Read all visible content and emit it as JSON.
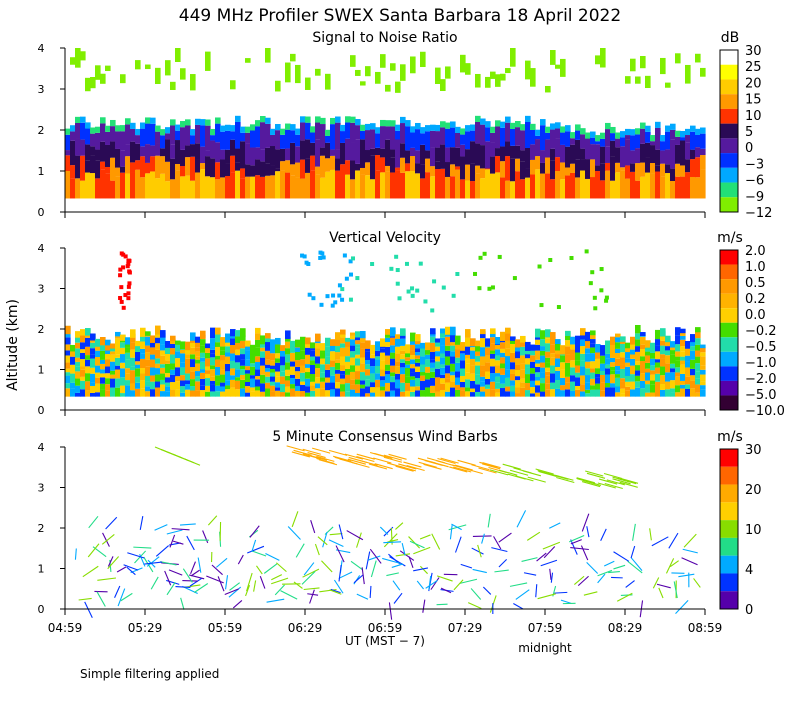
{
  "chart_data": {
    "type": "heatmap",
    "title": "449 MHz Profiler SWEX Santa Barbara 18 April 2022",
    "ylabel": "Altitude (km)",
    "xlabel": "UT  (MST − 7)",
    "midnight_label": "midnight",
    "footnote": "Simple filtering applied",
    "x_tick_labels": [
      "04:59",
      "05:29",
      "05:59",
      "06:29",
      "06:59",
      "07:29",
      "07:59",
      "08:29",
      "08:59"
    ],
    "y_tick_labels": [
      "0",
      "1",
      "2",
      "3",
      "4"
    ],
    "ylim": [
      0,
      4
    ],
    "panels": [
      {
        "id": "snr",
        "subtitle": "Signal to Noise Ratio",
        "units": "dB",
        "colorbar_labels": [
          "30",
          "25",
          "20",
          "15",
          "10",
          "5",
          "0",
          "−3",
          "−6",
          "−9",
          "−12"
        ],
        "colors": [
          "#ffffff",
          "#ffff00",
          "#ffcc00",
          "#ff9900",
          "#ff3300",
          "#2a0a55",
          "#551a9e",
          "#0030ff",
          "#00a8ff",
          "#22e077",
          "#80ee00"
        ]
      },
      {
        "id": "w",
        "subtitle": "Vertical Velocity",
        "units": "m/s",
        "colorbar_labels": [
          "2.0",
          "1.0",
          "0.5",
          "0.2",
          "0.0",
          "−0.2",
          "−0.5",
          "−1.0",
          "−2.0",
          "−5.0",
          "−10.0"
        ],
        "colors": [
          "#ff0000",
          "#ff6600",
          "#ff9900",
          "#ffb300",
          "#ffd000",
          "#44dd00",
          "#22ddaa",
          "#00aaff",
          "#0033ff",
          "#5500aa",
          "#330033"
        ]
      },
      {
        "id": "wind",
        "subtitle": "5 Minute Consensus Wind Barbs",
        "units": "m/s",
        "colorbar_labels": [
          "30",
          "20",
          "10",
          "4",
          "0"
        ],
        "colors": [
          "#ff0000",
          "#ff6600",
          "#ffaa00",
          "#ffd000",
          "#88dd00",
          "#22dd88",
          "#00aaff",
          "#0033ff",
          "#5500aa"
        ]
      }
    ]
  }
}
